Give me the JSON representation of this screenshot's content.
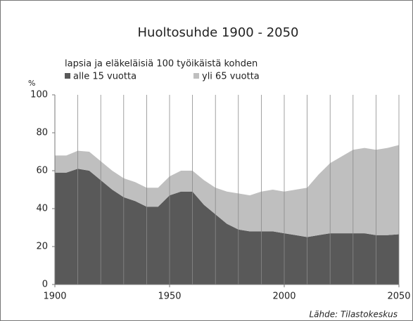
{
  "chart_data": {
    "type": "stacked_area",
    "title": "Huoltosuhde 1900 - 2050",
    "subtitle": "lapsia  ja eläkeläisiä  100 työikäistä kohden",
    "y_label": "%",
    "source": "Lähde: Tilastokeskus",
    "x": [
      1900,
      1905,
      1910,
      1915,
      1920,
      1925,
      1930,
      1935,
      1940,
      1945,
      1950,
      1955,
      1960,
      1965,
      1970,
      1975,
      1980,
      1985,
      1990,
      1995,
      2000,
      2005,
      2010,
      2015,
      2020,
      2025,
      2030,
      2035,
      2040,
      2045,
      2050
    ],
    "series": [
      {
        "name": "alle 15 vuotta",
        "color": "#595959",
        "values": [
          59,
          59,
          61,
          60,
          55,
          50,
          46,
          44,
          41,
          41,
          47,
          49,
          49,
          42,
          37,
          32,
          29,
          28,
          28,
          28,
          27,
          26,
          25,
          26,
          27,
          27,
          27,
          27,
          26,
          26,
          26.5
        ]
      },
      {
        "name": "yli 65 vuotta",
        "color": "#bfbfbf",
        "values": [
          9,
          9,
          9.5,
          10,
          10,
          10,
          10,
          10,
          10,
          10,
          10,
          11,
          11,
          13,
          14,
          17,
          19,
          19,
          21,
          22,
          22,
          24,
          26,
          32,
          37,
          40.5,
          44,
          45,
          45,
          46,
          47
        ]
      }
    ],
    "xlim": [
      1900,
      2050
    ],
    "xticks": [
      1900,
      1950,
      2000,
      2050
    ],
    "xgrid": [
      1900,
      1910,
      1920,
      1930,
      1940,
      1950,
      1960,
      1970,
      1980,
      1990,
      2000,
      2010,
      2020,
      2030,
      2040,
      2050
    ],
    "ylim": [
      0,
      100
    ],
    "yticks": [
      0,
      20,
      40,
      60,
      80,
      100
    ]
  }
}
